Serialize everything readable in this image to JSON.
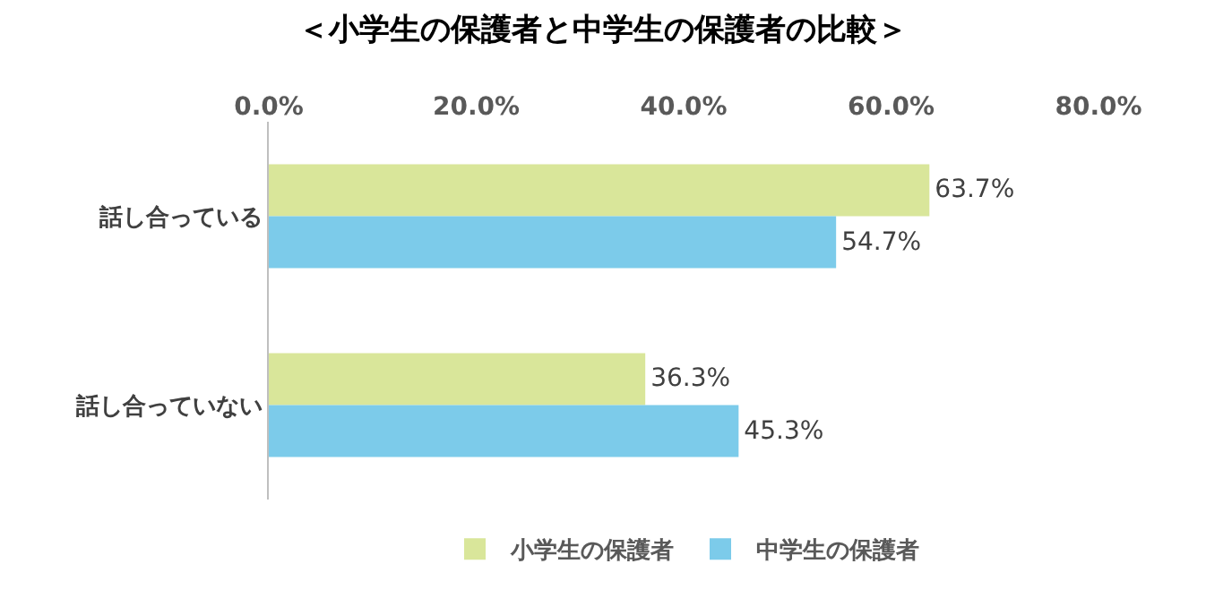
{
  "chart_data": {
    "type": "bar",
    "orientation": "horizontal",
    "title": "＜小学生の保護者と中学生の保護者の比較＞",
    "categories": [
      "話し合っている",
      "話し合っていない"
    ],
    "series": [
      {
        "name": "小学生の保護者",
        "color": "#d9e69a",
        "values": [
          63.7,
          36.3
        ],
        "value_labels": [
          "63.7%",
          "36.3%"
        ]
      },
      {
        "name": "中学生の保護者",
        "color": "#7ccbea",
        "values": [
          54.7,
          45.3
        ],
        "value_labels": [
          "54.7%",
          "45.3%"
        ]
      }
    ],
    "xlim": [
      0,
      80
    ],
    "xticks": [
      {
        "value": 0,
        "label": "0.0%"
      },
      {
        "value": 20,
        "label": "20.0%"
      },
      {
        "value": 40,
        "label": "40.0%"
      },
      {
        "value": 60,
        "label": "60.0%"
      },
      {
        "value": 80,
        "label": "80.0%"
      }
    ],
    "grid": false,
    "legend": "bottom"
  }
}
